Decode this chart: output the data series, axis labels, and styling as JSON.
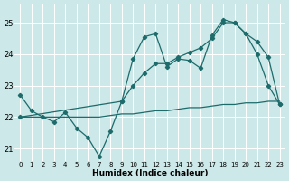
{
  "xlabel": "Humidex (Indice chaleur)",
  "xlim": [
    -0.5,
    23.5
  ],
  "ylim": [
    20.6,
    25.6
  ],
  "yticks": [
    21,
    22,
    23,
    24,
    25
  ],
  "xticks": [
    0,
    1,
    2,
    3,
    4,
    5,
    6,
    7,
    8,
    9,
    10,
    11,
    12,
    13,
    14,
    15,
    16,
    17,
    18,
    19,
    20,
    21,
    22,
    23
  ],
  "bg_color": "#cce8e8",
  "line_color": "#1d6b6b",
  "grid_color": "#b8d8d8",
  "series": [
    {
      "x": [
        0,
        1,
        2,
        3,
        4,
        5,
        6,
        7,
        8,
        9,
        10,
        11,
        12,
        13,
        14,
        15,
        16,
        17,
        18,
        19,
        20,
        21,
        22,
        23
      ],
      "y": [
        22.7,
        22.2,
        22.0,
        21.85,
        22.15,
        21.65,
        21.35,
        20.75,
        21.55,
        22.5,
        23.85,
        24.55,
        24.65,
        23.6,
        23.85,
        23.8,
        23.55,
        24.6,
        25.1,
        25.0,
        24.65,
        24.0,
        23.0,
        22.4
      ],
      "has_markers": true
    },
    {
      "x": [
        0,
        1,
        2,
        3,
        4,
        5,
        6,
        7,
        8,
        9,
        10,
        11,
        12,
        13,
        14,
        15,
        16,
        17,
        18,
        19,
        20,
        21,
        22,
        23
      ],
      "y": [
        22.0,
        22.0,
        22.0,
        22.0,
        22.0,
        22.0,
        22.0,
        22.0,
        22.05,
        22.1,
        22.1,
        22.15,
        22.2,
        22.2,
        22.25,
        22.3,
        22.3,
        22.35,
        22.4,
        22.4,
        22.45,
        22.45,
        22.5,
        22.5
      ],
      "has_markers": false
    },
    {
      "x": [
        0,
        9,
        10,
        11,
        12,
        13,
        14,
        15,
        16,
        17,
        18,
        19,
        20,
        21,
        22,
        23
      ],
      "y": [
        22.0,
        22.5,
        23.0,
        23.4,
        23.7,
        23.7,
        23.9,
        24.05,
        24.2,
        24.5,
        25.0,
        25.0,
        24.65,
        24.4,
        23.9,
        22.4
      ],
      "has_markers": true
    }
  ]
}
